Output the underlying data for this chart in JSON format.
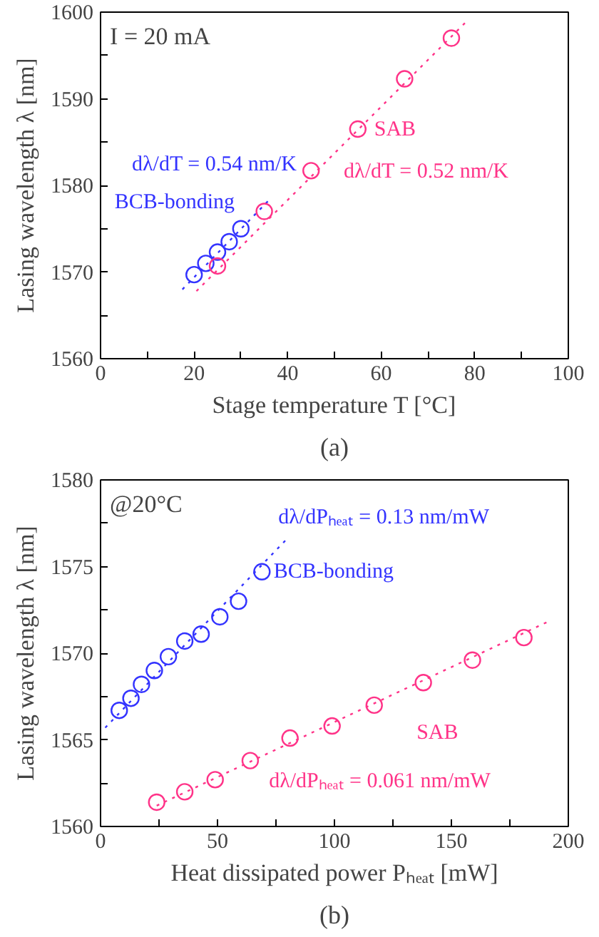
{
  "chart_data": [
    {
      "type": "scatter",
      "xlabel": "Stage temperature T [°C]",
      "ylabel": "Lasing wavelength λ [nm]",
      "annotations": [
        "I = 20 mA",
        "(a)"
      ],
      "xlim": [
        0,
        100
      ],
      "ylim": [
        1560,
        1600
      ],
      "xticks": [
        0,
        {
          "value": 10,
          "label": null
        },
        20,
        {
          "value": 30,
          "label": null
        },
        40,
        {
          "value": 50,
          "label": null
        },
        60,
        {
          "value": 70,
          "label": null
        },
        80,
        {
          "value": 90,
          "label": null
        },
        100
      ],
      "yticks": [
        1560,
        {
          "value": 1565,
          "label": null
        },
        1570,
        {
          "value": 1575,
          "label": null
        },
        1580,
        {
          "value": 1585,
          "label": null
        },
        1590,
        {
          "value": 1595,
          "label": null
        },
        1600
      ],
      "grid": false,
      "marker": "circle",
      "series": [
        {
          "name": "BCB-bonding",
          "color": "#3333ff",
          "x": [
            20,
            22.5,
            25,
            27.5,
            30
          ],
          "values": [
            1569.7,
            1571,
            1572.3,
            1573.5,
            1575
          ]
        },
        {
          "name": "dλ/dT = 0.54 nm/K",
          "type": "line",
          "marker": "none",
          "line_style": "dotted",
          "color": "#3333ff",
          "x": [
            17.5,
            36
          ],
          "values": [
            1568,
            1578.3
          ]
        },
        {
          "name": "SAB",
          "color": "#ff3388",
          "x": [
            25,
            35,
            45,
            55,
            65,
            75
          ],
          "values": [
            1570.7,
            1577,
            1581.7,
            1586.5,
            1592.3,
            1597
          ]
        },
        {
          "name": "dλ/dT = 0.52 nm/K",
          "type": "line",
          "marker": "none",
          "line_style": "dotted",
          "color": "#ff3388",
          "x": [
            20.5,
            78
          ],
          "values": [
            1567.8,
            1598.8
          ]
        }
      ]
    },
    {
      "type": "scatter",
      "xlabel": "Heat dissipated power Pₕₑₐₜ [mW]",
      "ylabel": "Lasing wavelength λ [nm]",
      "annotations": [
        "@20°C",
        "(b)"
      ],
      "xlim": [
        0,
        200
      ],
      "ylim": [
        1560,
        1580
      ],
      "xticks": [
        0,
        {
          "value": 25,
          "label": null
        },
        50,
        {
          "value": 75,
          "label": null
        },
        100,
        {
          "value": 125,
          "label": null
        },
        150,
        {
          "value": 175,
          "label": null
        },
        200
      ],
      "yticks": [
        1560,
        {
          "value": 1562.5,
          "label": null
        },
        1565,
        {
          "value": 1567.5,
          "label": null
        },
        1570,
        {
          "value": 1572.5,
          "label": null
        },
        1575,
        {
          "value": 1577.5,
          "label": null
        },
        1580
      ],
      "grid": false,
      "marker": "circle",
      "series": [
        {
          "name": "BCB-bonding",
          "color": "#3333ff",
          "x": [
            8,
            13,
            17.5,
            23,
            29,
            36,
            43,
            51,
            59,
            69
          ],
          "values": [
            1566.7,
            1567.4,
            1568.2,
            1569,
            1569.8,
            1570.7,
            1571.1,
            1572.1,
            1573,
            1574.7
          ]
        },
        {
          "name": "dλ/dPₕₑₐₜ = 0.13 nm/mW",
          "type": "line",
          "marker": "none",
          "line_style": "dotted",
          "color": "#3333ff",
          "x": [
            2,
            79
          ],
          "values": [
            1565.7,
            1576.5
          ]
        },
        {
          "name": "SAB",
          "color": "#ff3388",
          "x": [
            24,
            36,
            49,
            64,
            81,
            99,
            117,
            138,
            159,
            181
          ],
          "values": [
            1561.4,
            1562,
            1562.7,
            1563.8,
            1565.1,
            1565.8,
            1567,
            1568.3,
            1569.6,
            1570.9
          ]
        },
        {
          "name": "dλ/dPₕₑₐₜ = 0.061 nm/mW",
          "type": "line",
          "marker": "none",
          "line_style": "dotted",
          "color": "#ff3388",
          "x": [
            24,
            191
          ],
          "values": [
            1561.2,
            1571.8
          ]
        }
      ]
    }
  ]
}
